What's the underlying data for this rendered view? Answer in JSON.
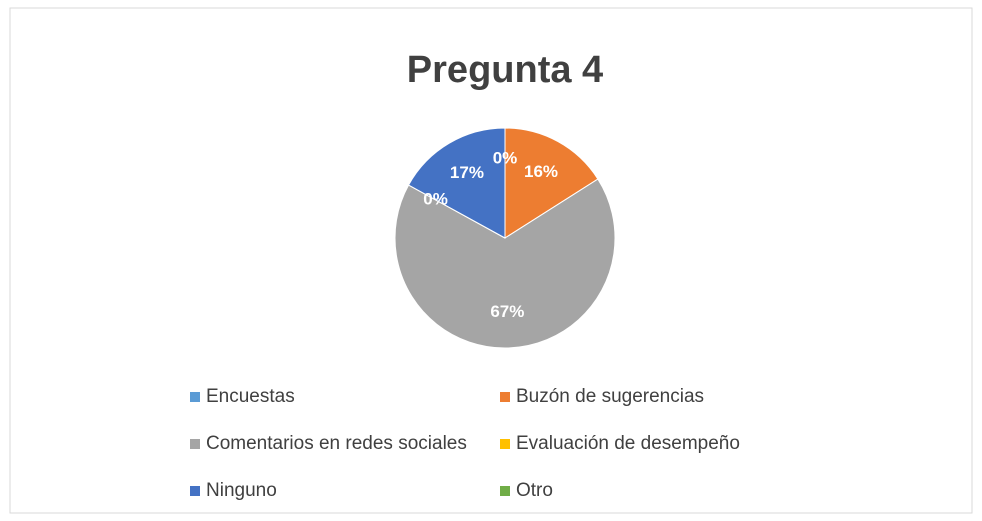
{
  "chart_data": {
    "type": "pie",
    "title": "Pregunta 4",
    "categories": [
      "Encuestas",
      "Buzón de sugerencias",
      "Comentarios en redes sociales",
      "Evaluación de desempeño",
      "Ninguno",
      "Otro"
    ],
    "values": [
      0,
      16,
      67,
      0,
      17,
      0
    ],
    "value_labels": [
      "0%",
      "16%",
      "67%",
      "0%",
      "17%",
      null
    ],
    "colors": [
      "#5b9bd5",
      "#ed7d31",
      "#a5a5a5",
      "#ffc000",
      "#4472c4",
      "#70ad47"
    ],
    "legend": "bottom"
  }
}
